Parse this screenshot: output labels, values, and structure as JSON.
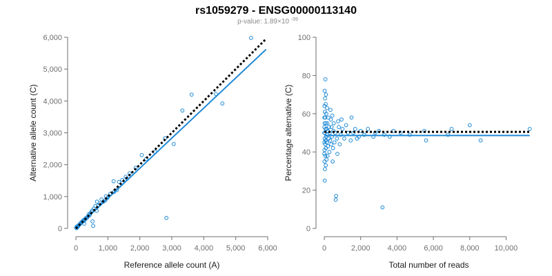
{
  "figure": {
    "title": "rs1059279 - ENSG00000113140",
    "pvalue_prefix": "p-value: 1.89×10",
    "pvalue_exponent": "-39"
  },
  "chart_data": [
    {
      "type": "scatter",
      "name": "allele-counts",
      "xlabel": "Reference allele count (A)",
      "ylabel": "Alternative allele count (C)",
      "xlim": [
        0,
        6000
      ],
      "ylim": [
        0,
        6000
      ],
      "xticks": [
        0,
        1000,
        2000,
        3000,
        4000,
        5000,
        6000
      ],
      "yticks": [
        0,
        1000,
        2000,
        3000,
        4000,
        5000,
        6000
      ],
      "xtick_labels": [
        "0",
        "1,000",
        "2,000",
        "3,000",
        "4,000",
        "5,000",
        "6,000"
      ],
      "ytick_labels": [
        "0",
        "1,000",
        "2,000",
        "3,000",
        "4,000",
        "5,000",
        "6,000"
      ],
      "lines": [
        {
          "name": "fit",
          "style": "solid",
          "color": "#1f8ad6",
          "x": [
            0,
            5950
          ],
          "y": [
            0,
            5620
          ]
        },
        {
          "name": "reference",
          "style": "dotted",
          "color": "#000000",
          "x": [
            0,
            5950
          ],
          "y": [
            0,
            5950
          ]
        }
      ],
      "points": [
        [
          5480,
          5980
        ],
        [
          4580,
          3920
        ],
        [
          3620,
          4200
        ],
        [
          4380,
          4220
        ],
        [
          3330,
          3700
        ],
        [
          3060,
          2650
        ],
        [
          2790,
          2830
        ],
        [
          2830,
          330
        ],
        [
          2480,
          2400
        ],
        [
          2060,
          2300
        ],
        [
          1870,
          1900
        ],
        [
          1680,
          1730
        ],
        [
          1560,
          1620
        ],
        [
          1450,
          1520
        ],
        [
          1350,
          1460
        ],
        [
          1180,
          1480
        ],
        [
          1190,
          1140
        ],
        [
          1080,
          1090
        ],
        [
          990,
          960
        ],
        [
          920,
          880
        ],
        [
          860,
          840
        ],
        [
          800,
          910
        ],
        [
          750,
          780
        ],
        [
          700,
          720
        ],
        [
          660,
          840
        ],
        [
          610,
          700
        ],
        [
          560,
          620
        ],
        [
          540,
          80
        ],
        [
          510,
          560
        ],
        [
          480,
          510
        ],
        [
          450,
          470
        ],
        [
          430,
          410
        ],
        [
          400,
          440
        ],
        [
          380,
          380
        ],
        [
          350,
          340
        ],
        [
          320,
          330
        ],
        [
          300,
          290
        ],
        [
          270,
          260
        ],
        [
          250,
          270
        ],
        [
          230,
          220
        ],
        [
          210,
          230
        ],
        [
          190,
          200
        ],
        [
          170,
          190
        ],
        [
          150,
          160
        ],
        [
          130,
          140
        ],
        [
          110,
          120
        ],
        [
          90,
          100
        ],
        [
          70,
          80
        ],
        [
          60,
          50
        ],
        [
          40,
          30
        ],
        [
          30,
          60
        ],
        [
          20,
          10
        ],
        [
          10,
          20
        ],
        [
          260,
          150
        ],
        [
          520,
          220
        ],
        [
          650,
          550
        ],
        [
          1280,
          1200
        ],
        [
          940,
          1010
        ],
        [
          1600,
          1560
        ],
        [
          2200,
          2180
        ]
      ]
    },
    {
      "type": "scatter",
      "name": "percentage-alternative",
      "xlabel": "Total number of reads",
      "ylabel": "Percentage alternative (C)",
      "xlim": [
        0,
        11500
      ],
      "ylim": [
        0,
        100
      ],
      "xticks": [
        0,
        2000,
        4000,
        6000,
        8000,
        10000
      ],
      "yticks": [
        0,
        20,
        40,
        60,
        80,
        100
      ],
      "xtick_labels": [
        "0",
        "2,000",
        "4,000",
        "6,000",
        "8,000",
        "10,000"
      ],
      "ytick_labels": [
        "0",
        "20",
        "40",
        "60",
        "80",
        "100"
      ],
      "lines": [
        {
          "name": "fit",
          "style": "solid",
          "color": "#1f8ad6",
          "x": [
            0,
            11300
          ],
          "y": [
            48.6,
            48.6
          ]
        },
        {
          "name": "reference",
          "style": "dotted",
          "color": "#000000",
          "x": [
            0,
            11300
          ],
          "y": [
            50.5,
            50.5
          ]
        }
      ],
      "points": [
        [
          11300,
          52
        ],
        [
          8600,
          46
        ],
        [
          8000,
          54
        ],
        [
          7000,
          52
        ],
        [
          6800,
          49
        ],
        [
          5600,
          46
        ],
        [
          5500,
          51
        ],
        [
          4700,
          49
        ],
        [
          4200,
          50
        ],
        [
          3800,
          51
        ],
        [
          3600,
          48
        ],
        [
          3300,
          49
        ],
        [
          3200,
          11
        ],
        [
          3000,
          51
        ],
        [
          2800,
          50
        ],
        [
          2700,
          48
        ],
        [
          2400,
          52
        ],
        [
          2200,
          49
        ],
        [
          2000,
          51
        ],
        [
          1900,
          48
        ],
        [
          1800,
          47
        ],
        [
          1700,
          52
        ],
        [
          1600,
          50
        ],
        [
          1500,
          58
        ],
        [
          1450,
          46
        ],
        [
          1300,
          50
        ],
        [
          1200,
          54
        ],
        [
          1100,
          47
        ],
        [
          1000,
          52
        ],
        [
          950,
          57
        ],
        [
          900,
          49
        ],
        [
          850,
          44
        ],
        [
          800,
          53
        ],
        [
          760,
          56
        ],
        [
          720,
          39
        ],
        [
          700,
          47
        ],
        [
          650,
          17
        ],
        [
          630,
          15
        ],
        [
          600,
          50
        ],
        [
          560,
          45
        ],
        [
          520,
          55
        ],
        [
          500,
          51
        ],
        [
          480,
          42
        ],
        [
          460,
          35
        ],
        [
          440,
          59
        ],
        [
          420,
          48
        ],
        [
          400,
          53
        ],
        [
          380,
          44
        ],
        [
          360,
          57
        ],
        [
          340,
          62
        ],
        [
          320,
          46
        ],
        [
          300,
          50
        ],
        [
          280,
          40
        ],
        [
          260,
          53
        ],
        [
          240,
          47
        ],
        [
          220,
          58
        ],
        [
          200,
          43
        ],
        [
          190,
          51
        ],
        [
          180,
          38
        ],
        [
          170,
          55
        ],
        [
          160,
          49
        ],
        [
          150,
          63
        ],
        [
          140,
          45
        ],
        [
          130,
          52
        ],
        [
          120,
          36
        ],
        [
          110,
          60
        ],
        [
          100,
          48
        ],
        [
          95,
          70
        ],
        [
          90,
          42
        ],
        [
          85,
          55
        ],
        [
          80,
          33
        ],
        [
          75,
          65
        ],
        [
          70,
          46
        ],
        [
          65,
          52
        ],
        [
          60,
          78
        ],
        [
          55,
          38
        ],
        [
          50,
          58
        ],
        [
          45,
          44
        ],
        [
          40,
          68
        ],
        [
          35,
          31
        ],
        [
          30,
          61
        ],
        [
          28,
          50
        ],
        [
          25,
          25
        ],
        [
          22,
          72
        ],
        [
          20,
          47
        ],
        [
          18,
          55
        ],
        [
          15,
          41
        ],
        [
          12,
          64
        ],
        [
          10,
          35
        ],
        [
          8,
          53
        ],
        [
          6,
          45
        ],
        [
          5,
          58
        ],
        [
          4,
          39
        ],
        [
          3,
          50
        ]
      ]
    }
  ]
}
